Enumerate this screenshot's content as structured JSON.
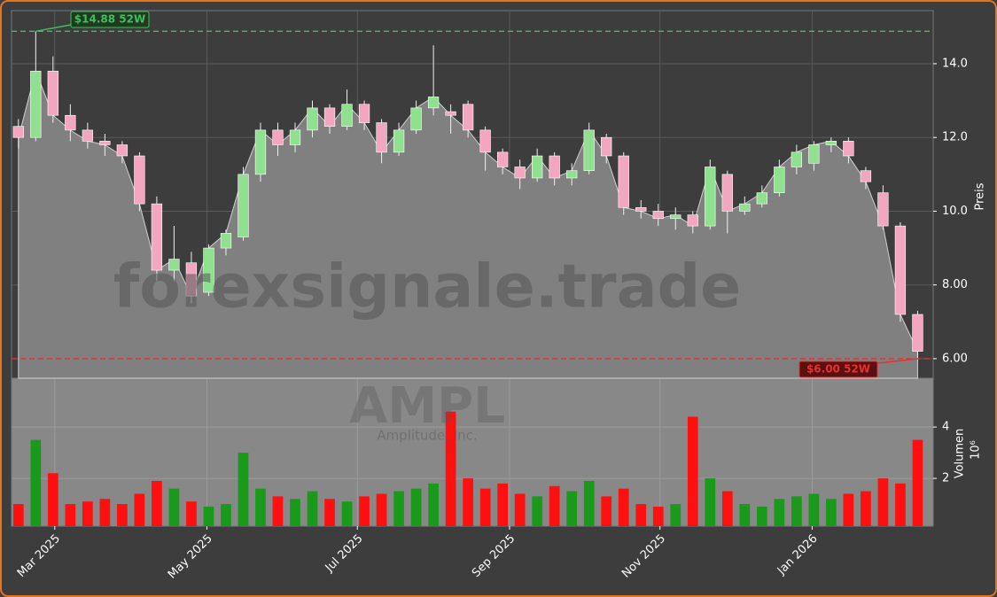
{
  "chart_data": {
    "type": "candlestick",
    "watermark": "forexsignale.trade",
    "ticker": "AMPL",
    "company": "Amplitude, Inc.",
    "y_label": "Preis",
    "volume_label": "Volumen",
    "volume_offset_label": "10⁶",
    "x": [
      0,
      1,
      2,
      3,
      4,
      5,
      6,
      7,
      8,
      9,
      10,
      11,
      12,
      13,
      14,
      15,
      16,
      17,
      18,
      19,
      20,
      21,
      22,
      23,
      24,
      25,
      26,
      27,
      28,
      29,
      30,
      31,
      32,
      33,
      34,
      35,
      36,
      37,
      38,
      39,
      40,
      41,
      42,
      43,
      44,
      45,
      46,
      47,
      48,
      49,
      50,
      51,
      52
    ],
    "open": [
      12.3,
      12.0,
      13.8,
      12.6,
      12.2,
      11.9,
      11.8,
      11.5,
      10.2,
      8.4,
      8.6,
      7.8,
      9.0,
      9.3,
      11.0,
      12.2,
      11.8,
      12.2,
      12.8,
      12.3,
      12.9,
      12.4,
      11.6,
      12.2,
      12.8,
      12.7,
      12.9,
      12.2,
      11.6,
      11.2,
      10.9,
      11.5,
      10.9,
      11.1,
      12.0,
      11.5,
      10.1,
      10.0,
      9.8,
      9.9,
      9.6,
      11.0,
      10.0,
      10.2,
      10.5,
      11.2,
      11.3,
      11.8,
      11.9,
      11.1,
      10.5,
      9.6,
      7.2
    ],
    "high": [
      12.5,
      14.88,
      14.2,
      12.9,
      12.4,
      12.1,
      11.9,
      11.6,
      10.4,
      9.6,
      8.9,
      9.1,
      9.5,
      11.2,
      12.4,
      12.4,
      12.4,
      13.0,
      12.9,
      13.3,
      13.0,
      12.5,
      12.4,
      13.0,
      14.5,
      12.9,
      13.0,
      12.3,
      11.7,
      11.4,
      11.7,
      11.6,
      11.3,
      12.4,
      12.1,
      11.6,
      10.3,
      10.2,
      10.1,
      10.0,
      11.4,
      11.1,
      10.4,
      10.7,
      11.4,
      11.8,
      11.9,
      12.0,
      12.0,
      11.2,
      10.7,
      9.7,
      7.3
    ],
    "low": [
      11.7,
      11.9,
      12.4,
      11.9,
      11.7,
      11.5,
      11.3,
      10.0,
      8.1,
      8.1,
      7.5,
      7.7,
      8.8,
      9.2,
      10.8,
      11.5,
      11.6,
      12.0,
      12.1,
      12.2,
      12.2,
      11.3,
      11.5,
      12.1,
      12.6,
      12.1,
      12.0,
      11.1,
      11.0,
      10.6,
      10.8,
      10.7,
      10.7,
      11.0,
      11.3,
      9.9,
      9.8,
      9.6,
      9.5,
      9.4,
      9.5,
      9.4,
      9.9,
      10.1,
      10.4,
      11.0,
      11.1,
      11.6,
      11.3,
      10.6,
      9.5,
      7.0,
      6.0
    ],
    "close": [
      12.0,
      13.8,
      12.6,
      12.2,
      11.9,
      11.8,
      11.5,
      10.2,
      8.4,
      8.7,
      7.7,
      9.0,
      9.4,
      11.0,
      12.2,
      11.8,
      12.2,
      12.8,
      12.3,
      12.9,
      12.4,
      11.6,
      12.2,
      12.8,
      13.1,
      12.6,
      12.2,
      11.6,
      11.2,
      10.9,
      11.5,
      10.9,
      11.1,
      12.2,
      11.5,
      10.1,
      10.0,
      9.8,
      9.9,
      9.6,
      11.2,
      10.0,
      10.2,
      10.5,
      11.2,
      11.6,
      11.8,
      11.9,
      11.5,
      10.8,
      9.6,
      7.2,
      6.2
    ],
    "volume": [
      1.0,
      3.5,
      2.2,
      1.0,
      1.1,
      1.2,
      1.0,
      1.4,
      1.9,
      1.6,
      1.1,
      0.9,
      1.0,
      3.0,
      1.6,
      1.3,
      1.2,
      1.5,
      1.2,
      1.1,
      1.3,
      1.4,
      1.5,
      1.6,
      1.8,
      4.6,
      2.0,
      1.6,
      1.8,
      1.4,
      1.3,
      1.7,
      1.5,
      1.9,
      1.3,
      1.6,
      1.0,
      0.9,
      1.0,
      4.4,
      2.0,
      1.5,
      1.0,
      0.9,
      1.2,
      1.3,
      1.4,
      1.2,
      1.4,
      1.5,
      2.0,
      1.8,
      3.5
    ],
    "up_color": "#8fe08f",
    "down_color": "#f2a6bf",
    "volume_up_color": "#1a9a1a",
    "volume_down_color": "#ff1010",
    "area_color": "#808080",
    "high_52w": {
      "value": 14.88,
      "label": "$14.88 52W",
      "color": "#3fbf5f"
    },
    "low_52w": {
      "value": 6.0,
      "label": "$6.00 52W",
      "color": "#e83030"
    },
    "xlim": [
      -0.4,
      52.9
    ],
    "xticks": [
      {
        "value": 2.1,
        "label": "Mar 2025"
      },
      {
        "value": 10.9,
        "label": "May 2025"
      },
      {
        "value": 19.6,
        "label": "Jul 2025"
      },
      {
        "value": 28.4,
        "label": "Sep 2025"
      },
      {
        "value": 37.1,
        "label": "Nov 2025"
      },
      {
        "value": 45.9,
        "label": "Jan 2026"
      }
    ],
    "ylim": [
      5.47,
      15.44
    ],
    "yticks": [
      {
        "value": 6,
        "label": "6.00"
      },
      {
        "value": 8,
        "label": "8.00"
      },
      {
        "value": 10,
        "label": "10.0"
      },
      {
        "value": 12,
        "label": "12.0"
      },
      {
        "value": 14,
        "label": "14.0"
      }
    ],
    "volume_ylim": [
      0.14,
      5.9
    ],
    "volume_yticks": [
      2,
      4
    ],
    "grid": true
  }
}
